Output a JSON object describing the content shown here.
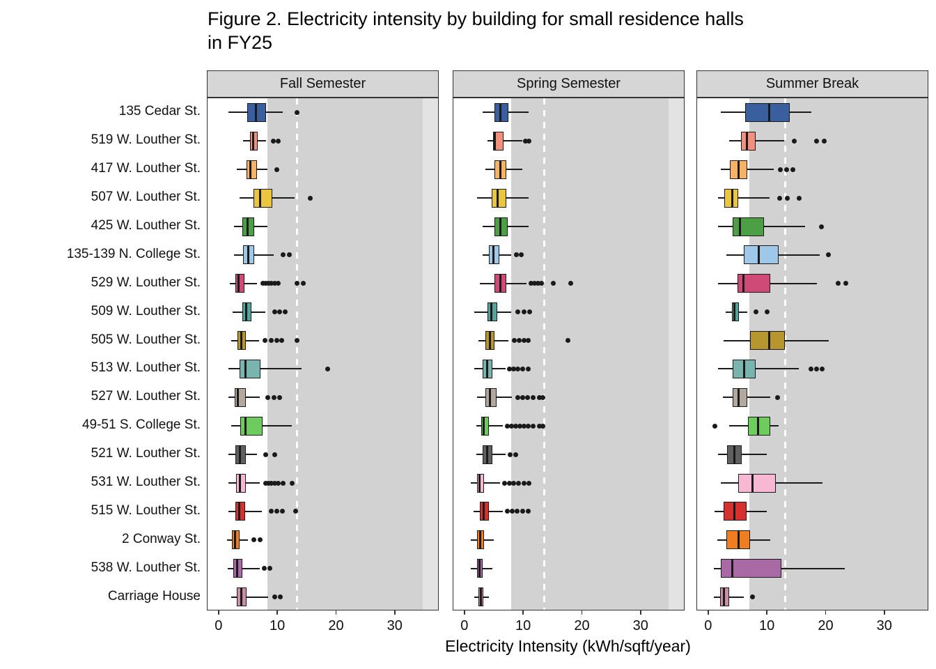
{
  "chart_data": {
    "type": "boxplot",
    "title": "Figure 2. Electricity intensity by building for small residence halls in FY25",
    "title_lines": [
      "Figure 2. Electricity intensity by building for small residence halls",
      "in FY25"
    ],
    "xlabel": "Electricity Intensity (kWh/sqft/year)",
    "x_ticks": [
      0,
      10,
      20,
      30
    ],
    "x_domain": [
      -2,
      37.5
    ],
    "legend": "none",
    "grid": "off",
    "colors": {
      "shaded_region": "#D2D2D2",
      "shaded_region_light": "#E3E3E3",
      "strip_background": "#D6D6D6",
      "threshold_line": "#FFFFFF",
      "box_outline": "#1a1a1a"
    },
    "buildings": [
      {
        "name": "135 Cedar St.",
        "color": "#3A5F9F"
      },
      {
        "name": "519 W. Louther St.",
        "color": "#F2907F"
      },
      {
        "name": "417 W. Louther St.",
        "color": "#F8B266"
      },
      {
        "name": "507 W. Louther St.",
        "color": "#EAC53F"
      },
      {
        "name": "425 W. Louther St.",
        "color": "#4C9F45"
      },
      {
        "name": "135-139 N. College St.",
        "color": "#9FC8E8"
      },
      {
        "name": "529 W. Louther St.",
        "color": "#D04A78"
      },
      {
        "name": "509 W. Louther St.",
        "color": "#55A399"
      },
      {
        "name": "505 W. Louther St.",
        "color": "#B6962F"
      },
      {
        "name": "513 W. Louther St.",
        "color": "#79B5AE"
      },
      {
        "name": "527 W. Louther St.",
        "color": "#B3A89E"
      },
      {
        "name": "49-51 S. College St.",
        "color": "#6ECC5F"
      },
      {
        "name": "521 W. Louther St.",
        "color": "#606060"
      },
      {
        "name": "531 W. Louther St.",
        "color": "#F8B8D4"
      },
      {
        "name": "515 W. Louther St.",
        "color": "#D6302F"
      },
      {
        "name": "2 Conway St.",
        "color": "#EF7D22"
      },
      {
        "name": "538 W. Louther St.",
        "color": "#A869A5"
      },
      {
        "name": "Carriage House",
        "color": "#C98FA6"
      }
    ],
    "facets": [
      {
        "label": "Fall Semester",
        "band": [
          8.2,
          34.6
        ],
        "band2": [
          34.6,
          37.5
        ],
        "dashed_line": 13.3,
        "boxes": [
          {
            "w": [
              1.5,
              4.8,
              6.3,
              8.0,
              10.8
            ],
            "out": [
              13.2
            ]
          },
          {
            "w": [
              4.0,
              5.2,
              5.8,
              6.6,
              8.0
            ],
            "out": [
              9.2,
              10.0
            ]
          },
          {
            "w": [
              3.0,
              4.6,
              5.3,
              6.4,
              8.2
            ],
            "out": [
              9.8
            ]
          },
          {
            "w": [
              3.5,
              5.8,
              7.0,
              9.0,
              12.8
            ],
            "out": [
              15.5
            ]
          },
          {
            "w": [
              2.5,
              3.9,
              4.8,
              5.9,
              8.2
            ],
            "out": []
          },
          {
            "w": [
              2.5,
              4.0,
              4.9,
              6.0,
              9.3
            ],
            "out": [
              10.9,
              11.9
            ]
          },
          {
            "w": [
              1.8,
              2.8,
              3.3,
              4.3,
              6.4
            ],
            "out": [
              7.4,
              7.9,
              8.4,
              8.9,
              9.4,
              10.0,
              13.2,
              14.3
            ]
          },
          {
            "w": [
              2.3,
              3.9,
              4.6,
              5.5,
              7.9
            ],
            "out": [
              9.5,
              10.3,
              11.2
            ]
          },
          {
            "w": [
              2.0,
              3.1,
              3.8,
              4.5,
              6.8
            ],
            "out": [
              7.8,
              8.8,
              9.8,
              10.6,
              13.2
            ]
          },
          {
            "w": [
              1.5,
              3.5,
              4.5,
              7.0,
              14.0
            ],
            "out": [
              18.5
            ]
          },
          {
            "w": [
              1.5,
              2.6,
              3.2,
              4.5,
              6.9
            ],
            "out": [
              8.3,
              9.3,
              10.3
            ]
          },
          {
            "w": [
              2.0,
              3.6,
              4.5,
              7.4,
              12.3
            ],
            "out": []
          },
          {
            "w": [
              1.5,
              2.8,
              3.5,
              4.5,
              6.4
            ],
            "out": [
              7.9,
              9.4
            ]
          },
          {
            "w": [
              1.5,
              2.9,
              3.5,
              4.5,
              6.9
            ],
            "out": [
              7.9,
              8.4,
              8.9,
              9.4,
              10.0,
              10.9,
              12.4
            ]
          },
          {
            "w": [
              1.5,
              2.8,
              3.4,
              4.4,
              7.3
            ],
            "out": [
              8.8,
              9.8,
              10.8,
              13.0
            ]
          },
          {
            "w": [
              1.3,
              2.1,
              2.7,
              3.4,
              4.9
            ],
            "out": [
              5.9,
              6.9
            ]
          },
          {
            "w": [
              1.4,
              2.4,
              3.0,
              3.9,
              6.9
            ],
            "out": [
              7.7,
              8.6
            ]
          },
          {
            "w": [
              2.0,
              3.0,
              3.7,
              4.7,
              8.3
            ],
            "out": [
              9.4,
              10.4
            ]
          }
        ]
      },
      {
        "label": "Spring Semester",
        "band": [
          7.8,
          34.6
        ],
        "band2": [
          34.6,
          37.5
        ],
        "dashed_line": 13.5,
        "boxes": [
          {
            "w": [
              3.0,
              5.0,
              6.0,
              7.4,
              10.8
            ],
            "out": []
          },
          {
            "w": [
              3.8,
              4.8,
              5.1,
              6.5,
              9.8
            ],
            "out": [
              10.3,
              10.9
            ]
          },
          {
            "w": [
              3.5,
              5.0,
              6.0,
              7.0,
              9.8
            ],
            "out": []
          },
          {
            "w": [
              2.0,
              4.5,
              5.5,
              7.0,
              10.8
            ],
            "out": []
          },
          {
            "w": [
              3.0,
              5.0,
              6.0,
              7.3,
              10.8
            ],
            "out": []
          },
          {
            "w": [
              3.0,
              4.1,
              4.8,
              5.8,
              7.9
            ],
            "out": [
              8.7,
              9.6
            ]
          },
          {
            "w": [
              2.5,
              5.0,
              6.0,
              7.0,
              10.4
            ],
            "out": [
              11.2,
              11.8,
              12.4,
              13.0,
              15.0,
              18.0
            ]
          },
          {
            "w": [
              1.5,
              3.8,
              4.5,
              5.5,
              7.9
            ],
            "out": [
              9.0,
              10.0,
              11.0
            ]
          },
          {
            "w": [
              2.3,
              3.5,
              4.2,
              5.0,
              7.4
            ],
            "out": [
              8.4,
              9.2,
              10.0,
              10.8,
              17.5
            ]
          },
          {
            "w": [
              1.5,
              3.0,
              3.8,
              4.6,
              6.9
            ],
            "out": [
              7.6,
              8.3,
              9.0,
              9.8,
              10.8
            ]
          },
          {
            "w": [
              2.0,
              3.4,
              4.2,
              5.4,
              8.0
            ],
            "out": [
              9.0,
              9.8,
              10.6,
              11.6,
              12.6,
              13.2
            ]
          },
          {
            "w": [
              1.9,
              2.8,
              3.2,
              4.0,
              6.4
            ],
            "out": [
              7.2,
              7.9,
              8.6,
              9.3,
              10.0,
              10.7,
              11.6,
              12.6,
              13.2
            ]
          },
          {
            "w": [
              1.9,
              3.0,
              3.8,
              4.6,
              6.9
            ],
            "out": [
              7.7,
              8.6
            ]
          },
          {
            "w": [
              1.0,
              2.0,
              2.5,
              3.2,
              5.9
            ],
            "out": [
              6.7,
              7.5,
              8.3,
              9.1,
              10.0,
              10.9
            ]
          },
          {
            "w": [
              1.4,
              2.5,
              3.2,
              4.0,
              6.4
            ],
            "out": [
              7.2,
              8.0,
              8.8,
              9.8,
              10.8
            ]
          },
          {
            "w": [
              1.0,
              2.0,
              2.6,
              3.2,
              4.9
            ],
            "out": []
          },
          {
            "w": [
              1.0,
              2.0,
              2.5,
              3.0,
              4.6
            ],
            "out": []
          },
          {
            "w": [
              1.5,
              2.3,
              2.7,
              3.1,
              4.1
            ],
            "out": []
          }
        ]
      },
      {
        "label": "Summer Break",
        "band": [
          6.9,
          37.5
        ],
        "dashed_line": 13.0,
        "boxes": [
          {
            "w": [
              2.0,
              6.2,
              10.3,
              13.8,
              17.4
            ],
            "out": []
          },
          {
            "w": [
              3.5,
              5.5,
              6.5,
              8.0,
              12.8
            ],
            "out": [
              14.6,
              18.4,
              19.6
            ]
          },
          {
            "w": [
              2.0,
              3.6,
              5.0,
              6.5,
              11.0
            ],
            "out": [
              12.2,
              13.2,
              14.3
            ]
          },
          {
            "w": [
              1.5,
              2.6,
              4.0,
              5.0,
              10.3
            ],
            "out": [
              12.0,
              13.4,
              15.4
            ]
          },
          {
            "w": [
              1.5,
              4.0,
              5.3,
              9.4,
              16.4
            ],
            "out": [
              19.2
            ]
          },
          {
            "w": [
              3.0,
              6.0,
              8.5,
              11.9,
              18.9
            ],
            "out": [
              20.4
            ]
          },
          {
            "w": [
              1.5,
              4.9,
              5.9,
              10.4,
              18.4
            ],
            "out": [
              22.0,
              23.3
            ]
          },
          {
            "w": [
              2.9,
              3.9,
              4.4,
              5.1,
              6.6
            ],
            "out": [
              8.0,
              9.9
            ]
          },
          {
            "w": [
              2.5,
              7.0,
              10.3,
              12.9,
              20.4
            ],
            "out": []
          },
          {
            "w": [
              1.5,
              4.0,
              6.0,
              8.0,
              15.3
            ],
            "out": [
              17.4,
              18.3,
              19.3
            ]
          },
          {
            "w": [
              2.4,
              4.0,
              5.0,
              6.5,
              10.4
            ],
            "out": [
              11.7
            ]
          },
          {
            "w": [
              3.4,
              6.6,
              8.4,
              10.4,
              11.9
            ],
            "out": [
              1.0
            ]
          },
          {
            "w": [
              1.5,
              3.1,
              4.3,
              5.6,
              9.9
            ],
            "out": []
          },
          {
            "w": [
              2.0,
              5.0,
              7.4,
              11.4,
              19.4
            ],
            "out": []
          },
          {
            "w": [
              1.0,
              2.5,
              4.4,
              6.4,
              9.9
            ],
            "out": []
          },
          {
            "w": [
              1.4,
              3.0,
              5.0,
              7.0,
              10.4
            ],
            "out": []
          },
          {
            "w": [
              0.9,
              2.0,
              4.0,
              12.4,
              23.2
            ],
            "out": []
          },
          {
            "w": [
              0.9,
              1.9,
              2.6,
              3.4,
              5.9
            ],
            "out": [
              7.4
            ]
          }
        ]
      }
    ]
  }
}
